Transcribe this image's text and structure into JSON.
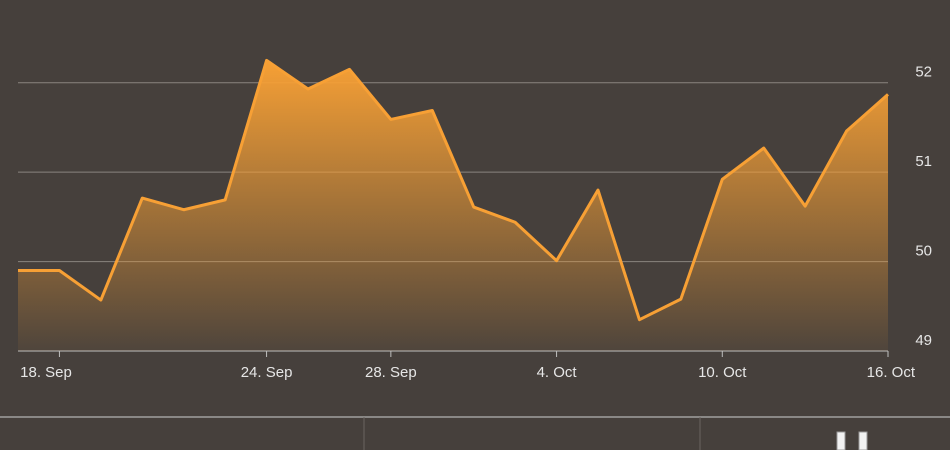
{
  "chart_data": {
    "type": "area",
    "categories": [
      null,
      "18. Sep",
      null,
      null,
      null,
      null,
      "24. Sep",
      null,
      null,
      "28. Sep",
      null,
      null,
      null,
      "4. Oct",
      null,
      null,
      null,
      "10. Oct",
      null,
      null,
      null,
      "16. Oct"
    ],
    "series": [
      {
        "color": "#f7a035",
        "values": [
          49.9,
          49.9,
          49.57,
          50.71,
          50.58,
          50.69,
          52.25,
          51.93,
          52.15,
          51.59,
          51.69,
          50.61,
          50.44,
          50.01,
          50.8,
          49.35,
          49.58,
          50.92,
          51.27,
          50.62,
          51.46,
          51.87
        ]
      }
    ],
    "ylim": [
      49,
      52.4
    ],
    "yticks": [
      49,
      50,
      51,
      52
    ],
    "grid": true
  }
}
